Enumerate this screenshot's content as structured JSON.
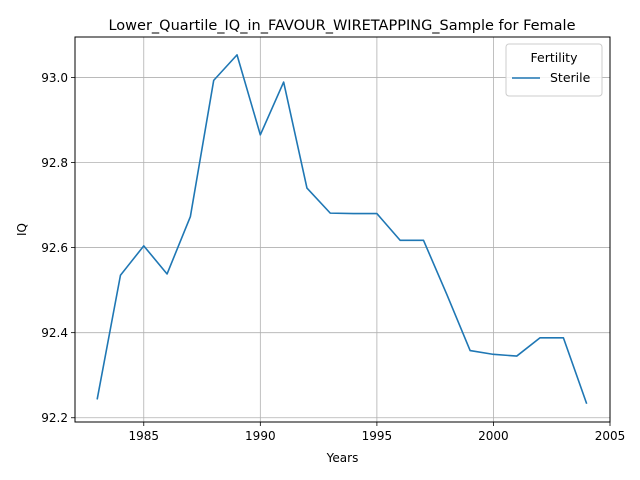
{
  "chart_data": {
    "type": "line",
    "title": "Lower_Quartile_IQ_in_FAVOUR_WIRETAPPING_Sample for Female",
    "xlabel": "Years",
    "ylabel": "IQ",
    "xlim": [
      1982.05,
      2005.0
    ],
    "ylim": [
      92.19,
      93.095
    ],
    "xticks": [
      1985,
      1990,
      1995,
      2000,
      2005
    ],
    "yticks": [
      92.2,
      92.4,
      92.6,
      92.8,
      93.0
    ],
    "xtick_labels": [
      "1985",
      "1990",
      "1995",
      "2000",
      "2005"
    ],
    "ytick_labels": [
      "92.2",
      "92.4",
      "92.6",
      "92.8",
      "93.0"
    ],
    "grid": true,
    "legend": {
      "title": "Fertility",
      "placement": "top-right"
    },
    "series": [
      {
        "name": "Sterile",
        "color": "#1f77b4",
        "x": [
          1983,
          1984,
          1985,
          1986,
          1987,
          1988,
          1989,
          1990,
          1991,
          1992,
          1993,
          1994,
          1995,
          1996,
          1997,
          1998,
          1999,
          2000,
          2001,
          2002,
          2003,
          2004
        ],
        "y": [
          92.243,
          92.535,
          92.604,
          92.538,
          92.673,
          92.993,
          93.053,
          92.865,
          92.989,
          92.74,
          92.681,
          92.68,
          92.68,
          92.617,
          92.617,
          92.49,
          92.358,
          92.349,
          92.345,
          92.388,
          92.388,
          92.233
        ]
      }
    ]
  }
}
